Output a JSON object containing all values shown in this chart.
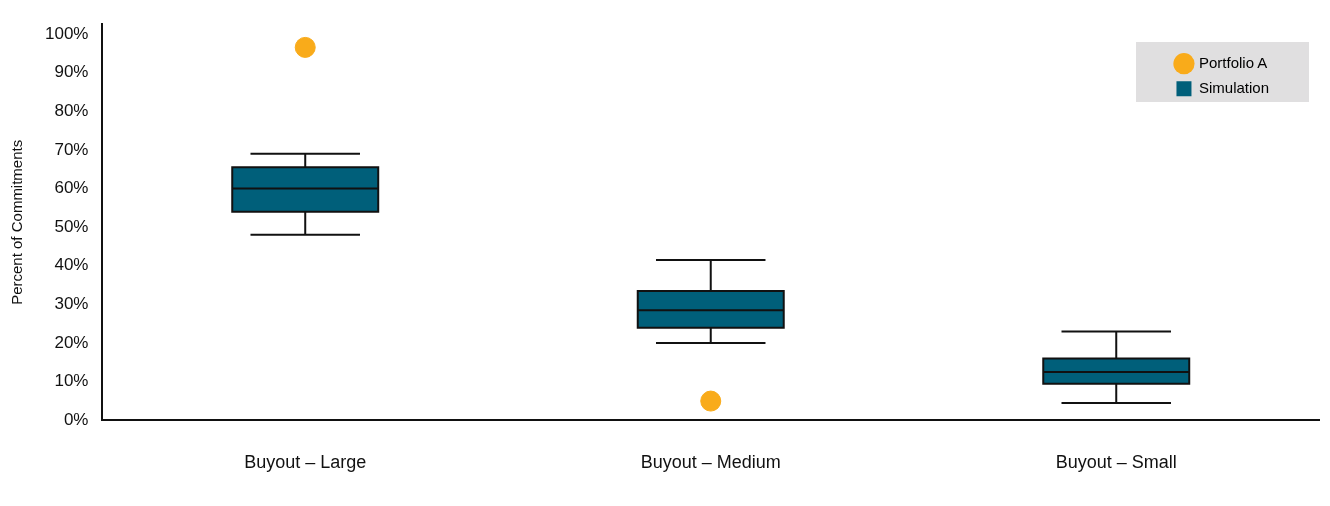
{
  "chart_data": {
    "type": "box",
    "ylabel": "Percent of Commitments",
    "categories": [
      "Buyout – Large",
      "Buyout – Medium",
      "Buyout – Small"
    ],
    "ylim": [
      0,
      102.5
    ],
    "yticks": [
      {
        "value": 0,
        "label": "0%"
      },
      {
        "value": 10,
        "label": "10%"
      },
      {
        "value": 20,
        "label": "20%"
      },
      {
        "value": 30,
        "label": "30%"
      },
      {
        "value": 40,
        "label": "40%"
      },
      {
        "value": 50,
        "label": "50%"
      },
      {
        "value": 60,
        "label": "60%"
      },
      {
        "value": 70,
        "label": "70%"
      },
      {
        "value": 80,
        "label": "80%"
      },
      {
        "value": 90,
        "label": "90%"
      },
      {
        "value": 100,
        "label": "100%"
      }
    ],
    "grid": false,
    "legend": "top right",
    "series": [
      {
        "name": "Portfolio A",
        "type": "scatter",
        "color": "#f9ab1a",
        "marker": "circle",
        "x": [
          "Buyout – Large",
          "Buyout – Medium"
        ],
        "values": [
          96.5,
          5
        ]
      },
      {
        "name": "Simulation",
        "color": "#005f7a",
        "boxes": [
          {
            "low": 48,
            "q1": 54,
            "median": 60,
            "q3": 65.5,
            "high": 69
          },
          {
            "low": 20,
            "q1": 24,
            "median": 28.5,
            "q3": 33.5,
            "high": 41.5
          },
          {
            "low": 4.5,
            "q1": 9.5,
            "median": 12.5,
            "q3": 16,
            "high": 23
          }
        ]
      }
    ]
  }
}
